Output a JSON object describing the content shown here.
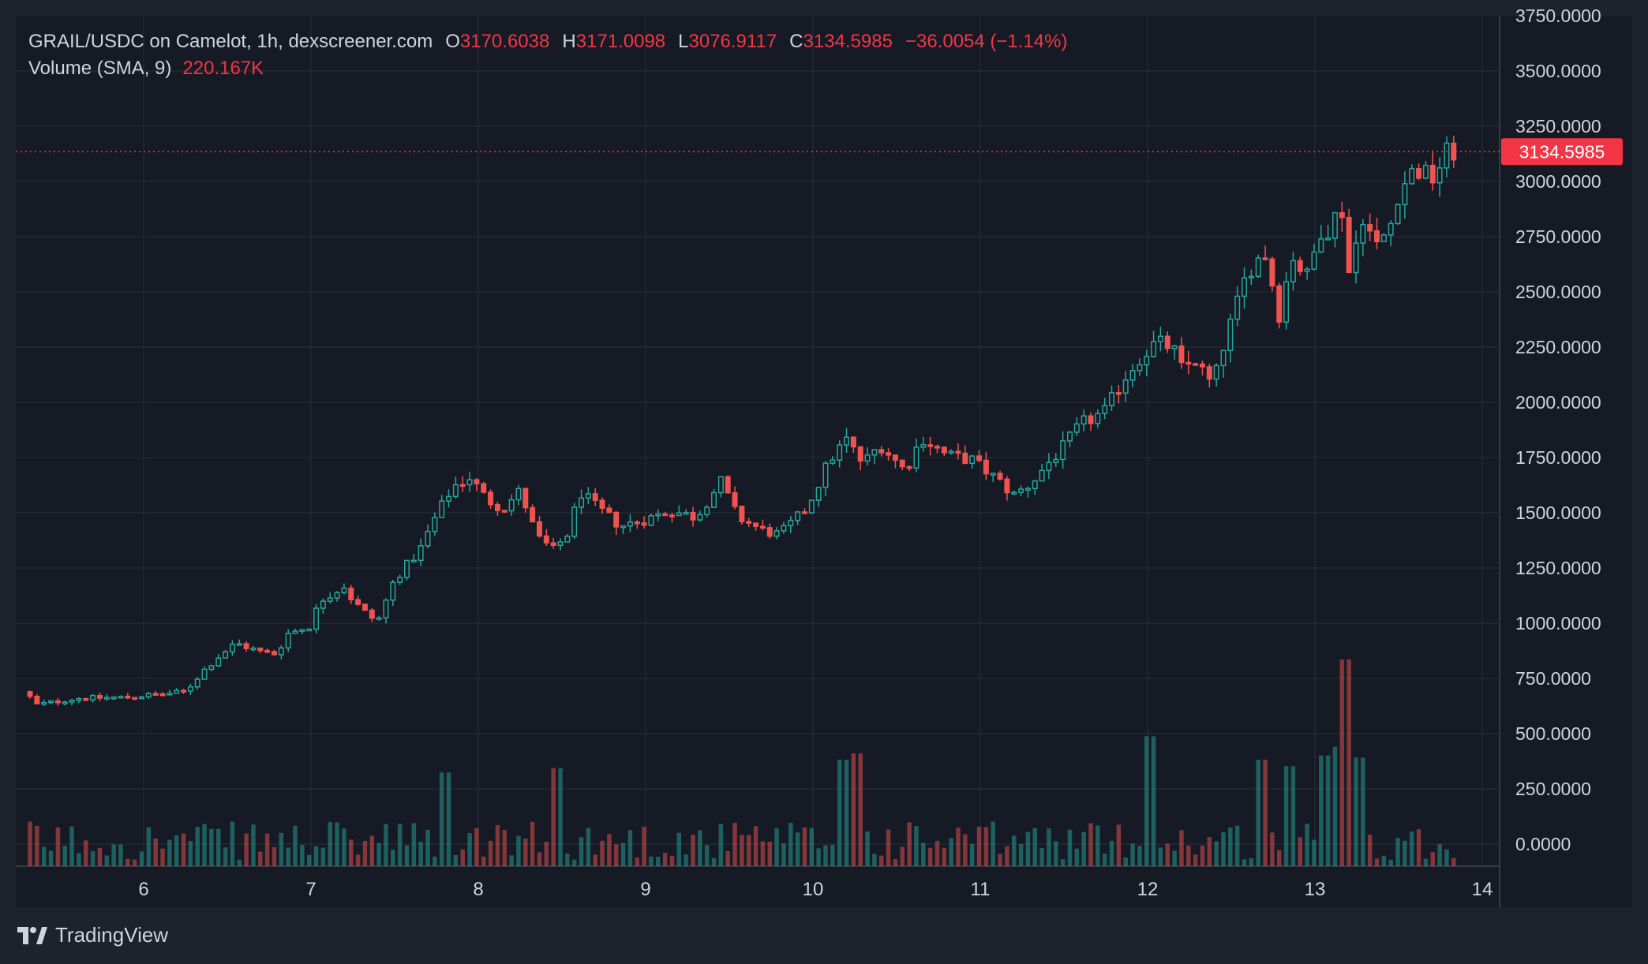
{
  "legend": {
    "symbol": "GRAIL/USDC on Camelot, 1h, dexscreener.com",
    "open_label": "O",
    "open": "3170.6038",
    "high_label": "H",
    "high": "3171.0098",
    "low_label": "L",
    "low": "3076.9117",
    "close_label": "C",
    "close": "3134.5985",
    "change": "−36.0054 (−1.14%)",
    "volume_label": "Volume (SMA, 9)",
    "volume_value": "220.167K"
  },
  "branding": {
    "name": "TradingView"
  },
  "price_marker": "3134.5985",
  "colors": {
    "background": "#1e222d",
    "panel": "#161a25",
    "grid": "#2a2e39",
    "up": "#26a69a",
    "down": "#ef5350",
    "text": "#d1d4dc",
    "marker": "#f23645"
  },
  "chart_data": {
    "type": "candlestick",
    "interval": "1h",
    "y_ticks": [
      "0.0000",
      "250.0000",
      "500.0000",
      "750.0000",
      "1000.0000",
      "1250.0000",
      "1500.0000",
      "1750.0000",
      "2000.0000",
      "2250.0000",
      "2500.0000",
      "2750.0000",
      "3000.0000",
      "3250.0000",
      "3500.0000",
      "3750.0000"
    ],
    "x_ticks": [
      "6",
      "7",
      "8",
      "9",
      "10",
      "11",
      "12",
      "13",
      "14"
    ],
    "ylim": [
      -100,
      3750
    ],
    "last_price": 3134.5985,
    "anchors": [
      [
        5.3,
        690
      ],
      [
        5.35,
        630
      ],
      [
        5.6,
        660
      ],
      [
        5.9,
        665
      ],
      [
        6.25,
        690
      ],
      [
        6.35,
        780
      ],
      [
        6.45,
        850
      ],
      [
        6.55,
        910
      ],
      [
        6.7,
        870
      ],
      [
        6.8,
        860
      ],
      [
        6.85,
        950
      ],
      [
        7.0,
        990
      ],
      [
        7.05,
        1100
      ],
      [
        7.2,
        1170
      ],
      [
        7.25,
        1100
      ],
      [
        7.35,
        1030
      ],
      [
        7.4,
        1010
      ],
      [
        7.5,
        1200
      ],
      [
        7.65,
        1330
      ],
      [
        7.75,
        1490
      ],
      [
        7.85,
        1620
      ],
      [
        7.95,
        1660
      ],
      [
        8.05,
        1560
      ],
      [
        8.15,
        1520
      ],
      [
        8.25,
        1600
      ],
      [
        8.35,
        1390
      ],
      [
        8.45,
        1330
      ],
      [
        8.55,
        1420
      ],
      [
        8.6,
        1600
      ],
      [
        8.7,
        1530
      ],
      [
        8.85,
        1440
      ],
      [
        9.0,
        1470
      ],
      [
        9.15,
        1510
      ],
      [
        9.3,
        1480
      ],
      [
        9.45,
        1640
      ],
      [
        9.55,
        1480
      ],
      [
        9.7,
        1420
      ],
      [
        9.8,
        1400
      ],
      [
        9.95,
        1510
      ],
      [
        10.0,
        1580
      ],
      [
        10.1,
        1740
      ],
      [
        10.2,
        1830
      ],
      [
        10.3,
        1720
      ],
      [
        10.4,
        1810
      ],
      [
        10.55,
        1690
      ],
      [
        10.65,
        1840
      ],
      [
        10.8,
        1760
      ],
      [
        10.95,
        1740
      ],
      [
        11.1,
        1650
      ],
      [
        11.2,
        1580
      ],
      [
        11.3,
        1630
      ],
      [
        11.4,
        1720
      ],
      [
        11.5,
        1800
      ],
      [
        11.6,
        1900
      ],
      [
        11.75,
        1960
      ],
      [
        11.85,
        2100
      ],
      [
        11.95,
        2200
      ],
      [
        12.05,
        2270
      ],
      [
        12.15,
        2250
      ],
      [
        12.2,
        2150
      ],
      [
        12.3,
        2200
      ],
      [
        12.35,
        2090
      ],
      [
        12.4,
        2100
      ],
      [
        12.45,
        2250
      ],
      [
        12.55,
        2480
      ],
      [
        12.6,
        2600
      ],
      [
        12.7,
        2680
      ],
      [
        12.8,
        2360
      ],
      [
        12.85,
        2690
      ],
      [
        12.95,
        2560
      ],
      [
        13.05,
        2820
      ],
      [
        13.1,
        2760
      ],
      [
        13.15,
        2960
      ],
      [
        13.2,
        2580
      ],
      [
        13.3,
        2890
      ],
      [
        13.35,
        2680
      ],
      [
        13.45,
        2800
      ],
      [
        13.5,
        2960
      ],
      [
        13.6,
        3060
      ],
      [
        13.7,
        3010
      ],
      [
        13.8,
        3140
      ],
      [
        13.85,
        3134
      ]
    ],
    "volume_spikes": [
      [
        7.8,
        440
      ],
      [
        8.45,
        460
      ],
      [
        10.2,
        500
      ],
      [
        10.25,
        530
      ],
      [
        12.0,
        610
      ],
      [
        12.7,
        500
      ],
      [
        12.85,
        470
      ],
      [
        13.05,
        520
      ],
      [
        13.15,
        560
      ],
      [
        13.17,
        970
      ],
      [
        13.25,
        510
      ]
    ]
  }
}
